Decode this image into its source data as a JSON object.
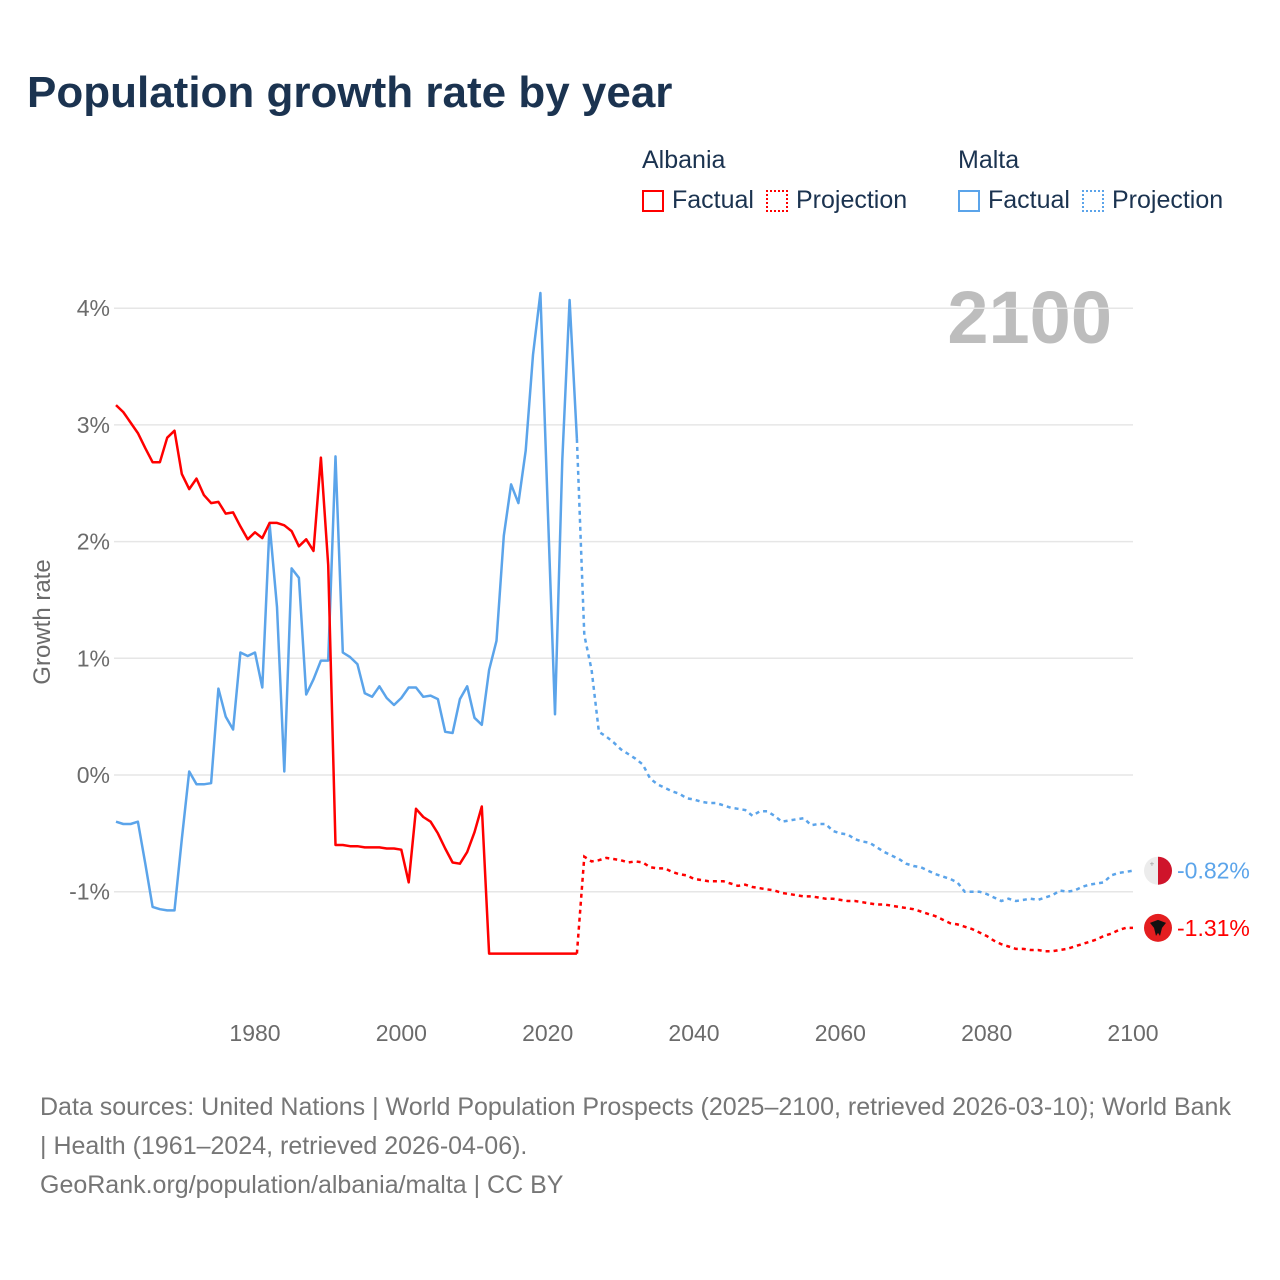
{
  "title": "Population growth rate by year",
  "legend": {
    "groups": [
      {
        "name": "Albania",
        "factual": "Factual",
        "projection": "Projection",
        "color": "#ff0000"
      },
      {
        "name": "Malta",
        "factual": "Factual",
        "projection": "Projection",
        "color": "#5ba4ea"
      }
    ]
  },
  "year_display": "2100",
  "footer": {
    "sources": "Data sources: United Nations | World Population Prospects (2025–2100, retrieved 2026-03-10); World Bank | Health (1961–2024, retrieved 2026-04-06).",
    "credit": "GeoRank.org/population/albania/malta | CC BY"
  },
  "chart_data": {
    "type": "line",
    "title": "Population growth rate by year",
    "xlabel": "",
    "ylabel": "Growth rate",
    "xlim": [
      1961,
      2100
    ],
    "ylim": [
      -1.85,
      4.3
    ],
    "x_ticks": [
      1980,
      2000,
      2020,
      2040,
      2060,
      2080,
      2100
    ],
    "y_ticks": [
      4,
      3,
      2,
      1,
      0,
      -1
    ],
    "y_tick_labels": [
      "4%",
      "3%",
      "2%",
      "1%",
      "0%",
      "-1%"
    ],
    "x_tick_labels": [
      "1980",
      "2000",
      "2020",
      "2040",
      "2060",
      "2080",
      "2100"
    ],
    "grid": true,
    "legend_position": "top-right",
    "series": [
      {
        "name": "Albania",
        "color": "#ff0000",
        "end_label": "-1.31%",
        "factual_start": 1961,
        "factual": [
          3.17,
          3.11,
          3.02,
          2.93,
          2.8,
          2.68,
          2.68,
          2.89,
          2.95,
          2.58,
          2.45,
          2.54,
          2.4,
          2.33,
          2.34,
          2.24,
          2.25,
          2.13,
          2.02,
          2.08,
          2.03,
          2.16,
          2.16,
          2.14,
          2.09,
          1.96,
          2.02,
          1.92,
          2.72,
          1.8,
          -0.6,
          -0.6,
          -0.61,
          -0.61,
          -0.62,
          -0.62,
          -0.62,
          -0.63,
          -0.63,
          -0.64,
          -0.92,
          -0.29,
          -0.36,
          -0.4,
          -0.5,
          -0.63,
          -0.75,
          -0.76,
          -0.66,
          -0.49,
          -0.27,
          -1.53,
          -1.53,
          -1.53,
          -1.53,
          -1.53,
          -1.53,
          -1.53,
          -1.53,
          -1.53,
          -1.53,
          -1.53,
          -1.53,
          -1.53
        ],
        "projection_start": 2024,
        "projection": [
          -1.53,
          -0.7,
          -0.74,
          -0.73,
          -0.71,
          -0.72,
          -0.73,
          -0.75,
          -0.74,
          -0.75,
          -0.79,
          -0.8,
          -0.8,
          -0.83,
          -0.85,
          -0.86,
          -0.89,
          -0.9,
          -0.91,
          -0.91,
          -0.91,
          -0.93,
          -0.95,
          -0.94,
          -0.96,
          -0.97,
          -0.98,
          -0.99,
          -1.01,
          -1.02,
          -1.03,
          -1.04,
          -1.04,
          -1.05,
          -1.06,
          -1.06,
          -1.07,
          -1.08,
          -1.08,
          -1.09,
          -1.1,
          -1.11,
          -1.11,
          -1.12,
          -1.13,
          -1.14,
          -1.15,
          -1.17,
          -1.19,
          -1.21,
          -1.24,
          -1.27,
          -1.28,
          -1.3,
          -1.32,
          -1.35,
          -1.38,
          -1.42,
          -1.45,
          -1.47,
          -1.49,
          -1.49,
          -1.5,
          -1.5,
          -1.51,
          -1.51,
          -1.5,
          -1.49,
          -1.47,
          -1.45,
          -1.43,
          -1.41,
          -1.38,
          -1.36,
          -1.33,
          -1.31,
          -1.31
        ]
      },
      {
        "name": "Malta",
        "color": "#5ba4ea",
        "end_label": "-0.82%",
        "factual_start": 1961,
        "factual": [
          -0.4,
          -0.42,
          -0.42,
          -0.4,
          -0.76,
          -1.13,
          -1.15,
          -1.16,
          -1.16,
          -0.55,
          0.03,
          -0.08,
          -0.08,
          -0.07,
          0.74,
          0.5,
          0.39,
          1.05,
          1.02,
          1.05,
          0.75,
          2.15,
          1.44,
          0.03,
          1.77,
          1.69,
          0.69,
          0.82,
          0.98,
          0.98,
          2.73,
          1.05,
          1.01,
          0.95,
          0.7,
          0.67,
          0.76,
          0.66,
          0.6,
          0.66,
          0.75,
          0.75,
          0.67,
          0.68,
          0.65,
          0.37,
          0.36,
          0.65,
          0.76,
          0.49,
          0.43,
          0.9,
          1.15,
          2.05,
          2.49,
          2.33,
          2.78,
          3.6,
          4.13,
          2.3,
          0.52,
          2.7,
          4.07,
          2.88
        ],
        "projection_start": 2024,
        "projection": [
          2.88,
          1.2,
          0.9,
          0.37,
          0.33,
          0.28,
          0.22,
          0.18,
          0.14,
          0.09,
          -0.03,
          -0.08,
          -0.11,
          -0.14,
          -0.16,
          -0.2,
          -0.21,
          -0.23,
          -0.24,
          -0.24,
          -0.26,
          -0.28,
          -0.29,
          -0.3,
          -0.35,
          -0.31,
          -0.31,
          -0.35,
          -0.4,
          -0.39,
          -0.38,
          -0.37,
          -0.43,
          -0.42,
          -0.42,
          -0.48,
          -0.5,
          -0.51,
          -0.55,
          -0.57,
          -0.58,
          -0.62,
          -0.66,
          -0.69,
          -0.72,
          -0.76,
          -0.78,
          -0.79,
          -0.82,
          -0.85,
          -0.87,
          -0.89,
          -0.92,
          -1.0,
          -1.0,
          -1.0,
          -1.02,
          -1.05,
          -1.08,
          -1.06,
          -1.08,
          -1.07,
          -1.06,
          -1.07,
          -1.05,
          -1.03,
          -0.99,
          -1.0,
          -0.99,
          -0.96,
          -0.94,
          -0.93,
          -0.92,
          -0.86,
          -0.84,
          -0.83,
          -0.82
        ]
      }
    ]
  }
}
